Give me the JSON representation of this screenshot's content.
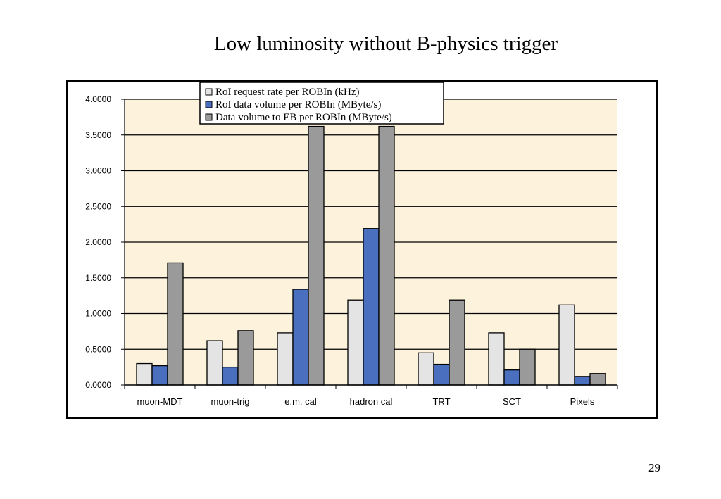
{
  "slide": {
    "title": "Low luminosity without B-physics trigger",
    "page_number": "29"
  },
  "colors": {
    "plot_background": "#fdf2dc",
    "grid": "#000000",
    "series": [
      "#e4e4e4",
      "#4b6fbf",
      "#9a9a9a"
    ]
  },
  "chart_data": {
    "type": "bar",
    "title": "",
    "xlabel": "",
    "ylabel": "",
    "ylim": [
      0,
      4
    ],
    "yticks": [
      0,
      0.5,
      1,
      1.5,
      2,
      2.5,
      3,
      3.5,
      4
    ],
    "ytick_labels": [
      "0.0000",
      "0.5000",
      "1.0000",
      "1.5000",
      "2.0000",
      "2.5000",
      "3.0000",
      "3.5000",
      "4.0000"
    ],
    "grid": true,
    "legend_position": "top-center",
    "categories": [
      "muon-MDT",
      "muon-trig",
      "e.m. cal",
      "hadron cal",
      "TRT",
      "SCT",
      "Pixels"
    ],
    "series": [
      {
        "name": "RoI request rate per ROBIn (kHz)",
        "values": [
          0.3,
          0.62,
          0.73,
          1.19,
          0.45,
          0.73,
          1.12
        ]
      },
      {
        "name": "RoI data volume per ROBIn (MByte/s)",
        "values": [
          0.27,
          0.25,
          1.34,
          2.19,
          0.29,
          0.21,
          0.12
        ]
      },
      {
        "name": "Data volume to EB per ROBIn (MByte/s)",
        "values": [
          1.71,
          0.76,
          3.62,
          3.62,
          1.19,
          0.5,
          0.16
        ]
      }
    ]
  }
}
